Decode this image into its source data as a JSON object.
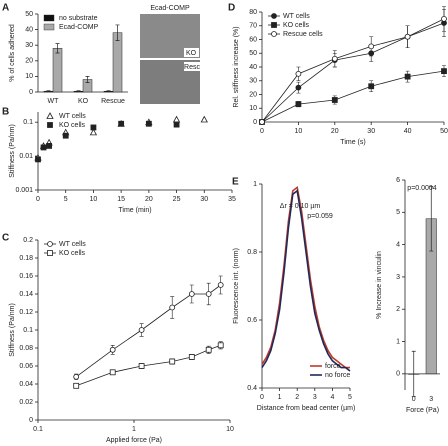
{
  "chart_data": [
    {
      "label": "A",
      "type": "bar",
      "categories": [
        "WT",
        "KO",
        "Rescue"
      ],
      "series": [
        {
          "name": "no substrate",
          "color": "#111111",
          "values": [
            0.5,
            0.5,
            0.5
          ],
          "errors": [
            0.3,
            0.3,
            0.3
          ]
        },
        {
          "name": "Ecad-COMP",
          "color": "#a9a9a9",
          "values": [
            28,
            8,
            38
          ],
          "errors": [
            3,
            2,
            5
          ]
        }
      ],
      "y_label": "% of cells adhered",
      "ylim": [
        0,
        50
      ],
      "yticks": [
        0,
        10,
        20,
        30,
        40,
        50
      ],
      "legend": "upper-left",
      "images": {
        "title": "Ecad-COMP",
        "labels": [
          "KO",
          "Resc"
        ]
      }
    },
    {
      "label": "B",
      "type": "scatter",
      "x": [
        0,
        1,
        2,
        5,
        10,
        15,
        20,
        25,
        30
      ],
      "series": [
        {
          "name": "WT cells",
          "color": "#222222",
          "marker": "triangle",
          "values": [
            0.009,
            0.02,
            0.025,
            0.05,
            0.05,
            0.09,
            0.1,
            0.12,
            0.12
          ]
        },
        {
          "name": "KO cells",
          "color": "#222222",
          "marker": "square",
          "values": [
            0.008,
            0.018,
            0.02,
            0.04,
            0.07,
            0.09,
            0.09,
            0.085,
            null
          ]
        }
      ],
      "x_label": "Time (min)",
      "y_label": "Stiffness (Pa/nm)",
      "xlim": [
        0,
        35
      ],
      "xticks": [
        0,
        5,
        10,
        15,
        20,
        25,
        30,
        35
      ],
      "ylim": [
        0.001,
        0.2
      ],
      "yticks": [
        0.001,
        0.01,
        0.1
      ],
      "y_scale": "log",
      "legend": "upper-left"
    },
    {
      "label": "C",
      "type": "line",
      "x": [
        0.25,
        0.6,
        1.2,
        2.5,
        4,
        6,
        8
      ],
      "series": [
        {
          "name": "WT cells",
          "color": "#222222",
          "marker": "circle-open",
          "values": [
            0.048,
            0.078,
            0.1,
            0.125,
            0.14,
            0.14,
            0.15
          ],
          "errors": [
            0.003,
            0.005,
            0.007,
            0.012,
            0.01,
            0.012,
            0.01
          ]
        },
        {
          "name": "KO cells",
          "color": "#222222",
          "marker": "square-open",
          "values": [
            0.038,
            0.053,
            0.06,
            0.065,
            0.07,
            0.078,
            0.083
          ],
          "errors": [
            0.002,
            0.002,
            0.003,
            0.003,
            0.003,
            0.004,
            0.004
          ]
        }
      ],
      "x_label": "Applied force (Pa)",
      "y_label": "Stiffness (Pa/nm)",
      "xlim": [
        0.1,
        10
      ],
      "xticks": [
        0.1,
        1,
        10
      ],
      "x_scale": "log",
      "ylim": [
        0,
        0.2
      ],
      "yticks": [
        0,
        0.02,
        0.04,
        0.06,
        0.08,
        0.1,
        0.12,
        0.14,
        0.16,
        0.18,
        0.2
      ],
      "legend": "upper-left"
    },
    {
      "label": "D",
      "type": "line",
      "x": [
        0,
        10,
        20,
        30,
        40,
        50
      ],
      "series": [
        {
          "name": "WT cells",
          "color": "#222222",
          "marker": "circle",
          "values": [
            0,
            25,
            45,
            50,
            62,
            72
          ],
          "errors": [
            0,
            4,
            5,
            6,
            8,
            10
          ]
        },
        {
          "name": "KO cells",
          "color": "#222222",
          "marker": "square",
          "values": [
            0,
            13,
            16,
            26,
            33,
            37
          ],
          "errors": [
            0,
            2,
            3,
            4,
            4,
            4
          ]
        },
        {
          "name": "Rescue cells",
          "color": "#222222",
          "marker": "circle-open",
          "values": [
            0,
            35,
            46,
            55,
            62,
            75
          ],
          "errors": [
            0,
            5,
            6,
            7,
            8,
            9
          ]
        }
      ],
      "x_label": "Time (s)",
      "y_label": "Rel. stiffness increase (%)",
      "xlim": [
        0,
        50
      ],
      "xticks": [
        0,
        10,
        20,
        30,
        40,
        50
      ],
      "ylim": [
        0,
        80
      ],
      "yticks": [
        0,
        10,
        20,
        30,
        40,
        50,
        60,
        70,
        80
      ],
      "legend": "upper-left"
    },
    {
      "label": "E",
      "type": "line",
      "x": [
        0,
        0.25,
        0.5,
        0.75,
        1,
        1.25,
        1.5,
        1.75,
        2,
        2.25,
        2.5,
        2.75,
        3,
        3.25,
        3.5,
        3.75,
        4,
        4.25,
        4.5,
        4.75,
        5
      ],
      "series": [
        {
          "name": "force",
          "color": "#c0392b",
          "values": [
            0.47,
            0.49,
            0.52,
            0.57,
            0.65,
            0.76,
            0.89,
            0.98,
            0.99,
            0.92,
            0.82,
            0.72,
            0.64,
            0.58,
            0.54,
            0.51,
            0.49,
            0.48,
            0.47,
            0.46,
            0.46
          ]
        },
        {
          "name": "no force",
          "color": "#1f2a5a",
          "values": [
            0.46,
            0.48,
            0.51,
            0.56,
            0.63,
            0.74,
            0.87,
            0.97,
            0.98,
            0.9,
            0.8,
            0.7,
            0.62,
            0.57,
            0.53,
            0.5,
            0.48,
            0.47,
            0.46,
            0.46,
            0.45
          ]
        }
      ],
      "x_label": "Distance from bead center (µm)",
      "y_label": "Fluorescence int. (norm)",
      "xlim": [
        0,
        5
      ],
      "xticks": [
        0,
        1,
        2,
        3,
        4,
        5
      ],
      "ylim": [
        0.4,
        1
      ],
      "yticks": [
        0.4,
        0.6,
        0.8,
        1
      ],
      "legend": "lower-right",
      "annotations": [
        "Δr = 0.10 µm",
        "p=0.059"
      ]
    },
    {
      "type": "bar",
      "categories": [
        "0",
        "3"
      ],
      "values": [
        0,
        4.8
      ],
      "errors": [
        0.7,
        1
      ],
      "color": "#a9a9a9",
      "x_label": "Force (Pa)",
      "y_label": "% Increase in vinculin",
      "ylim": [
        -0.5,
        6
      ],
      "yticks": [
        0,
        1,
        2,
        3,
        4,
        5,
        6
      ],
      "annotations": [
        "p=0.0004"
      ]
    }
  ]
}
